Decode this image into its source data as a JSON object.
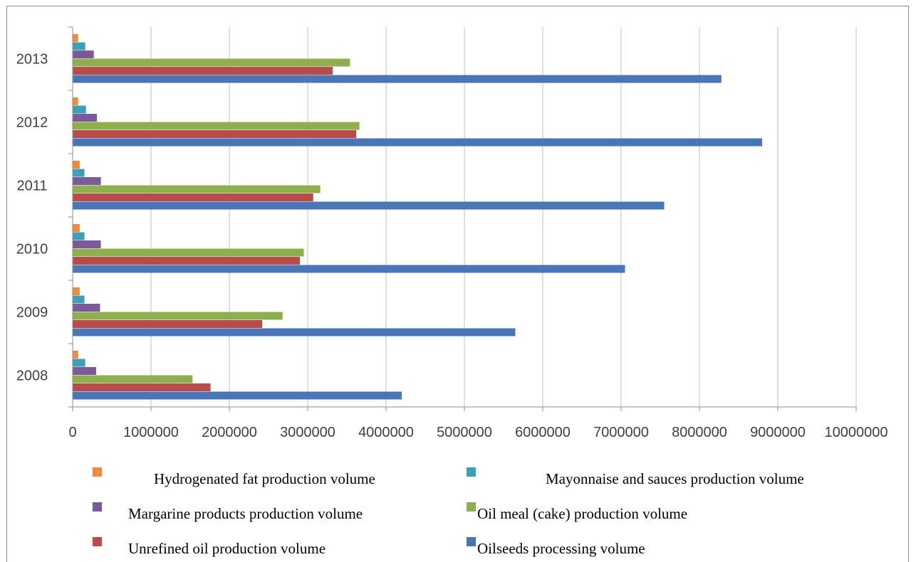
{
  "chart_data": {
    "type": "bar",
    "orientation": "horizontal",
    "categories": [
      "2008",
      "2009",
      "2010",
      "2011",
      "2012",
      "2013"
    ],
    "series": [
      {
        "name": "Oilseeds processing volume",
        "color": "#4a76b7",
        "values": [
          4200000,
          5650000,
          7050000,
          7550000,
          8800000,
          8280000
        ]
      },
      {
        "name": "Unrefined oil production volume",
        "color": "#b94c4a",
        "values": [
          1760000,
          2420000,
          2900000,
          3070000,
          3620000,
          3320000
        ]
      },
      {
        "name": "Oil meal (cake) production volume",
        "color": "#8faf4f",
        "values": [
          1530000,
          2680000,
          2950000,
          3160000,
          3660000,
          3540000
        ]
      },
      {
        "name": "Margarine products production volume",
        "color": "#7a5a99",
        "values": [
          300000,
          350000,
          360000,
          360000,
          310000,
          270000
        ]
      },
      {
        "name": "Mayonnaise and sauces production volume",
        "color": "#3ba0b6",
        "values": [
          160000,
          150000,
          150000,
          150000,
          170000,
          160000
        ]
      },
      {
        "name": "Hydrogenated fat production volume",
        "color": "#ef8b3c",
        "values": [
          70000,
          90000,
          90000,
          90000,
          70000,
          70000
        ]
      }
    ],
    "xlim": [
      0,
      10000000
    ],
    "xticks": [
      "0",
      "1000000",
      "2000000",
      "3000000",
      "4000000",
      "5000000",
      "6000000",
      "7000000",
      "8000000",
      "9000000",
      "10000000"
    ],
    "grid": true,
    "legend_position": "bottom",
    "title": "",
    "xlabel": "",
    "ylabel": ""
  },
  "legend": [
    {
      "label": "Hydrogenated fat production volume",
      "color": "#ef8b3c"
    },
    {
      "label": "Mayonnaise and sauces production volume",
      "color": "#3ba0b6"
    },
    {
      "label": "Margarine products production volume",
      "color": "#7a5a99"
    },
    {
      "label": "Oil meal (cake) production volume",
      "color": "#8faf4f"
    },
    {
      "label": "Unrefined oil production volume",
      "color": "#b94c4a"
    },
    {
      "label": "Oilseeds processing volume",
      "color": "#4a76b7"
    }
  ]
}
